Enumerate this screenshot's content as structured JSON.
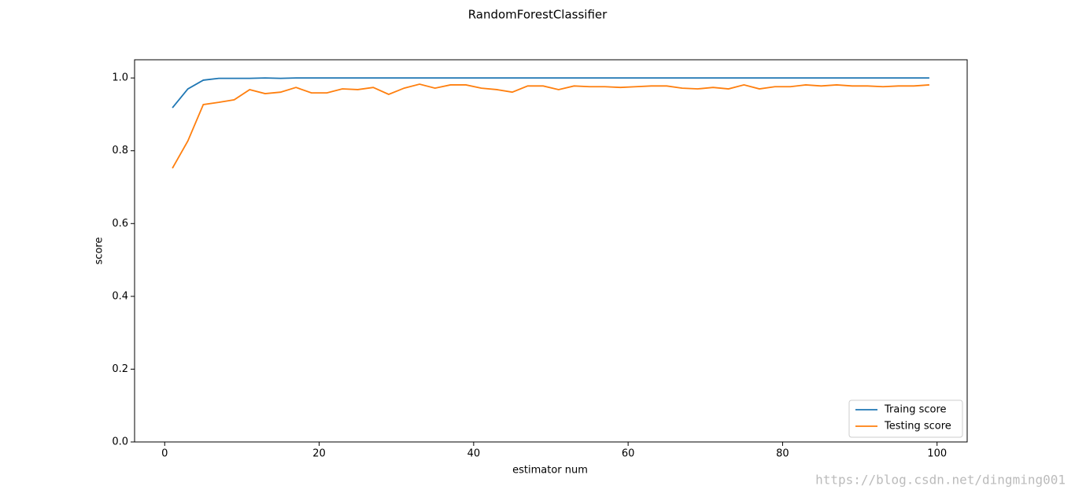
{
  "chart_data": {
    "type": "line",
    "title": "RandomForestClassifier",
    "x_label": "estimator num",
    "y_label": "score",
    "x": [
      1,
      3,
      5,
      7,
      9,
      11,
      13,
      15,
      17,
      19,
      21,
      23,
      25,
      27,
      29,
      31,
      33,
      35,
      37,
      39,
      41,
      43,
      45,
      47,
      49,
      51,
      53,
      55,
      57,
      59,
      61,
      63,
      65,
      67,
      69,
      71,
      73,
      75,
      77,
      79,
      81,
      83,
      85,
      87,
      89,
      91,
      93,
      95,
      97,
      99
    ],
    "series": [
      {
        "name": "Traing score",
        "color": "#1f77b4",
        "values": [
          0.918,
          0.97,
          0.994,
          0.999,
          0.999,
          0.999,
          1.0,
          0.999,
          1.0,
          1.0,
          1.0,
          1.0,
          1.0,
          1.0,
          1.0,
          1.0,
          1.0,
          1.0,
          1.0,
          1.0,
          1.0,
          1.0,
          1.0,
          1.0,
          1.0,
          1.0,
          1.0,
          1.0,
          1.0,
          1.0,
          1.0,
          1.0,
          1.0,
          1.0,
          1.0,
          1.0,
          1.0,
          1.0,
          1.0,
          1.0,
          1.0,
          1.0,
          1.0,
          1.0,
          1.0,
          1.0,
          1.0,
          1.0,
          1.0,
          1.0
        ]
      },
      {
        "name": "Testing score",
        "color": "#ff7f0e",
        "values": [
          0.752,
          0.827,
          0.927,
          0.933,
          0.94,
          0.968,
          0.957,
          0.961,
          0.974,
          0.959,
          0.959,
          0.97,
          0.968,
          0.974,
          0.955,
          0.972,
          0.983,
          0.972,
          0.981,
          0.981,
          0.972,
          0.968,
          0.961,
          0.978,
          0.978,
          0.968,
          0.978,
          0.976,
          0.976,
          0.974,
          0.976,
          0.978,
          0.978,
          0.972,
          0.97,
          0.974,
          0.97,
          0.981,
          0.97,
          0.976,
          0.976,
          0.981,
          0.978,
          0.981,
          0.978,
          0.978,
          0.976,
          0.978,
          0.978,
          0.981
        ]
      }
    ],
    "xlim": [
      -3.9,
      103.9
    ],
    "ylim": [
      0,
      1.05
    ],
    "xticks": [
      0,
      20,
      40,
      60,
      80,
      100
    ],
    "yticks": [
      {
        "value": 0,
        "label": "0.0"
      },
      0.2,
      0.4,
      0.6,
      0.8,
      {
        "value": 1,
        "label": "1.0"
      }
    ],
    "grid": false,
    "legend": "lower right",
    "watermark": "https://blog.csdn.net/dingming001"
  }
}
